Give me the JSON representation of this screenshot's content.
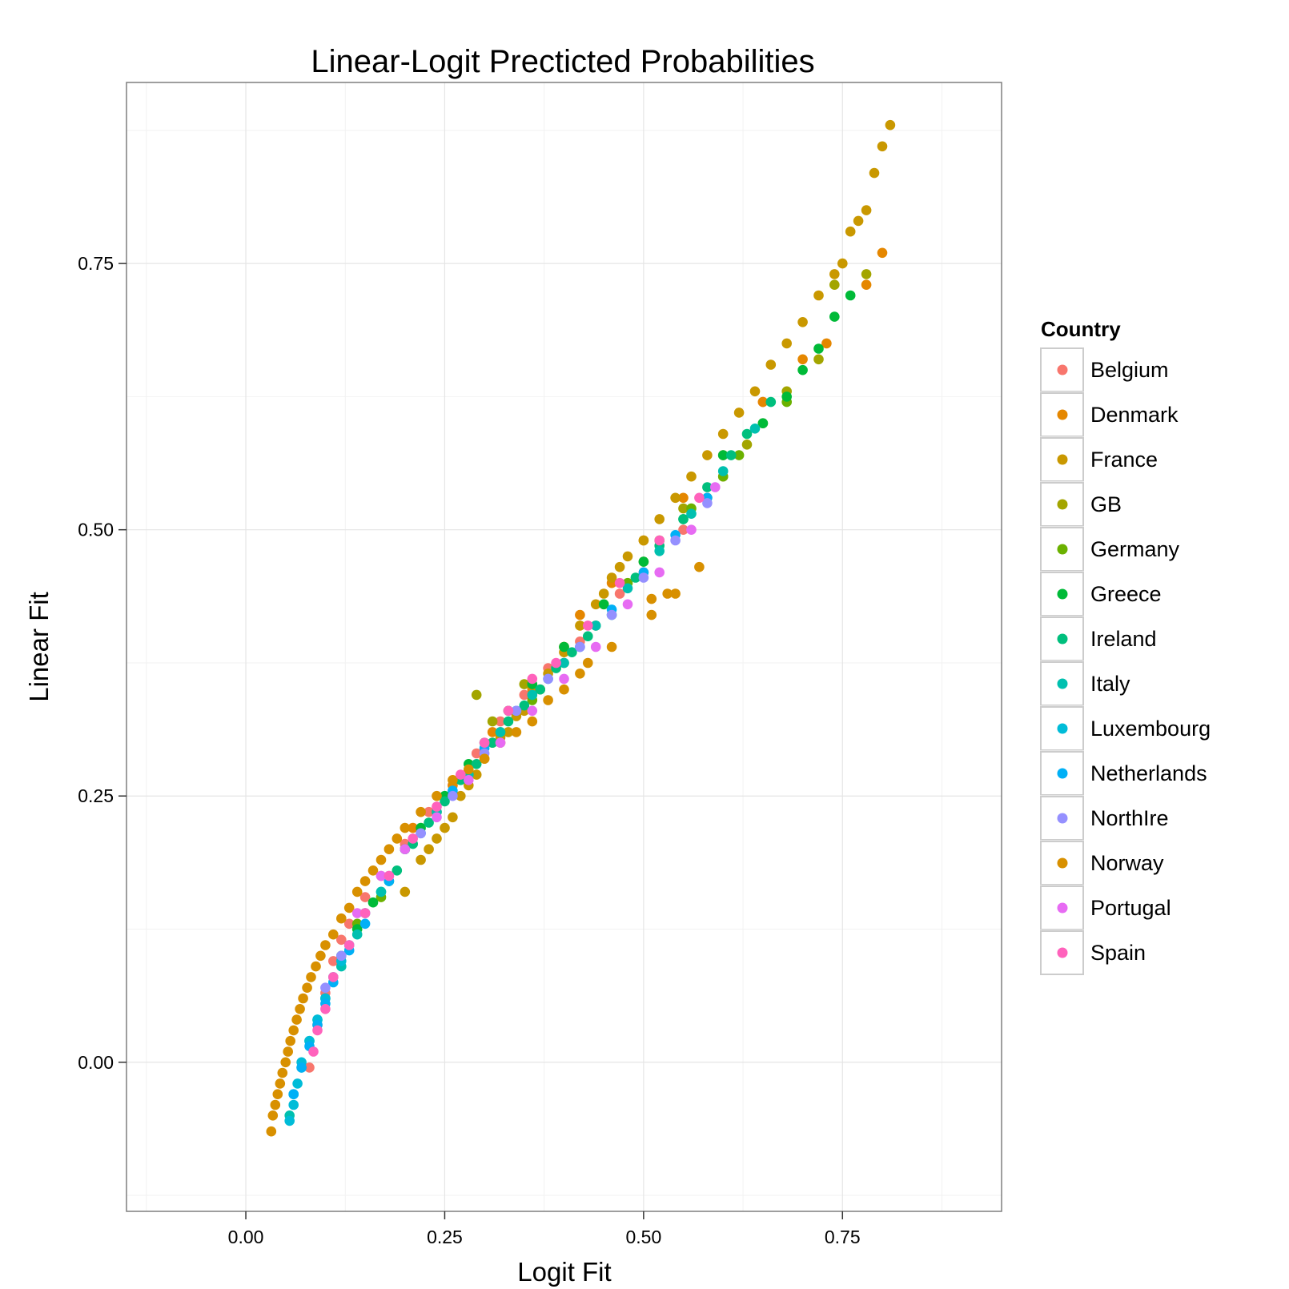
{
  "chart_data": {
    "type": "scatter",
    "title": "Linear-Logit Precticted Probabilities",
    "xlabel": "Logit Fit",
    "ylabel": "Linear Fit",
    "xlim": [
      -0.15,
      0.95
    ],
    "ylim": [
      -0.14,
      0.92
    ],
    "x_ticks": [
      0.0,
      0.25,
      0.5,
      0.75
    ],
    "x_tick_labels": [
      "0.00",
      "0.25",
      "0.50",
      "0.75"
    ],
    "y_ticks": [
      0.0,
      0.25,
      0.5,
      0.75
    ],
    "y_tick_labels": [
      "0.00",
      "0.25",
      "0.50",
      "0.75"
    ],
    "grid": true,
    "legend": {
      "title": "Country",
      "placement": "right"
    },
    "series": [
      {
        "name": "Belgium",
        "color": "#F8766D",
        "points": [
          [
            0.08,
            -0.005
          ],
          [
            0.09,
            0.035
          ],
          [
            0.1,
            0.065
          ],
          [
            0.11,
            0.095
          ],
          [
            0.12,
            0.115
          ],
          [
            0.13,
            0.13
          ],
          [
            0.15,
            0.155
          ],
          [
            0.17,
            0.175
          ],
          [
            0.2,
            0.205
          ],
          [
            0.23,
            0.235
          ],
          [
            0.26,
            0.26
          ],
          [
            0.29,
            0.29
          ],
          [
            0.32,
            0.32
          ],
          [
            0.35,
            0.345
          ],
          [
            0.38,
            0.37
          ],
          [
            0.42,
            0.395
          ],
          [
            0.47,
            0.44
          ],
          [
            0.5,
            0.46
          ],
          [
            0.55,
            0.5
          ],
          [
            0.6,
            0.55
          ],
          [
            0.65,
            0.62
          ]
        ]
      },
      {
        "name": "Denmark",
        "color": "#E58700",
        "points": [
          [
            0.21,
            0.22
          ],
          [
            0.26,
            0.26
          ],
          [
            0.31,
            0.31
          ],
          [
            0.36,
            0.35
          ],
          [
            0.4,
            0.39
          ],
          [
            0.42,
            0.42
          ],
          [
            0.46,
            0.45
          ],
          [
            0.5,
            0.49
          ],
          [
            0.55,
            0.53
          ],
          [
            0.6,
            0.57
          ],
          [
            0.65,
            0.62
          ],
          [
            0.7,
            0.66
          ],
          [
            0.73,
            0.675
          ],
          [
            0.78,
            0.73
          ],
          [
            0.8,
            0.76
          ]
        ]
      },
      {
        "name": "France",
        "color": "#C99800",
        "points": [
          [
            0.2,
            0.16
          ],
          [
            0.22,
            0.19
          ],
          [
            0.23,
            0.2
          ],
          [
            0.24,
            0.21
          ],
          [
            0.25,
            0.22
          ],
          [
            0.26,
            0.23
          ],
          [
            0.27,
            0.25
          ],
          [
            0.28,
            0.26
          ],
          [
            0.29,
            0.27
          ],
          [
            0.3,
            0.285
          ],
          [
            0.31,
            0.3
          ],
          [
            0.32,
            0.305
          ],
          [
            0.33,
            0.31
          ],
          [
            0.34,
            0.325
          ],
          [
            0.35,
            0.33
          ],
          [
            0.36,
            0.345
          ],
          [
            0.37,
            0.35
          ],
          [
            0.38,
            0.365
          ],
          [
            0.4,
            0.385
          ],
          [
            0.42,
            0.41
          ],
          [
            0.44,
            0.43
          ],
          [
            0.45,
            0.44
          ],
          [
            0.46,
            0.455
          ],
          [
            0.47,
            0.465
          ],
          [
            0.48,
            0.475
          ],
          [
            0.5,
            0.49
          ],
          [
            0.52,
            0.51
          ],
          [
            0.54,
            0.53
          ],
          [
            0.56,
            0.55
          ],
          [
            0.58,
            0.57
          ],
          [
            0.6,
            0.59
          ],
          [
            0.62,
            0.61
          ],
          [
            0.64,
            0.63
          ],
          [
            0.66,
            0.655
          ],
          [
            0.68,
            0.675
          ],
          [
            0.7,
            0.695
          ],
          [
            0.72,
            0.72
          ],
          [
            0.74,
            0.74
          ],
          [
            0.75,
            0.75
          ],
          [
            0.76,
            0.78
          ],
          [
            0.77,
            0.79
          ],
          [
            0.78,
            0.8
          ],
          [
            0.79,
            0.835
          ],
          [
            0.8,
            0.86
          ],
          [
            0.81,
            0.88
          ]
        ]
      },
      {
        "name": "GB",
        "color": "#A3A500",
        "points": [
          [
            0.29,
            0.345
          ],
          [
            0.31,
            0.32
          ],
          [
            0.35,
            0.355
          ],
          [
            0.4,
            0.39
          ],
          [
            0.45,
            0.43
          ],
          [
            0.5,
            0.47
          ],
          [
            0.55,
            0.52
          ],
          [
            0.58,
            0.53
          ],
          [
            0.63,
            0.58
          ],
          [
            0.68,
            0.63
          ],
          [
            0.72,
            0.66
          ],
          [
            0.74,
            0.73
          ],
          [
            0.78,
            0.74
          ]
        ]
      },
      {
        "name": "Germany",
        "color": "#6BB100",
        "points": [
          [
            0.14,
            0.13
          ],
          [
            0.17,
            0.155
          ],
          [
            0.2,
            0.2
          ],
          [
            0.24,
            0.235
          ],
          [
            0.28,
            0.27
          ],
          [
            0.32,
            0.31
          ],
          [
            0.36,
            0.34
          ],
          [
            0.4,
            0.375
          ],
          [
            0.44,
            0.41
          ],
          [
            0.48,
            0.45
          ],
          [
            0.52,
            0.49
          ],
          [
            0.56,
            0.52
          ],
          [
            0.6,
            0.55
          ],
          [
            0.62,
            0.57
          ],
          [
            0.65,
            0.6
          ],
          [
            0.68,
            0.62
          ]
        ]
      },
      {
        "name": "Greece",
        "color": "#00BA38",
        "points": [
          [
            0.12,
            0.1
          ],
          [
            0.14,
            0.125
          ],
          [
            0.16,
            0.15
          ],
          [
            0.18,
            0.17
          ],
          [
            0.2,
            0.2
          ],
          [
            0.22,
            0.22
          ],
          [
            0.25,
            0.25
          ],
          [
            0.28,
            0.28
          ],
          [
            0.3,
            0.3
          ],
          [
            0.33,
            0.33
          ],
          [
            0.36,
            0.355
          ],
          [
            0.4,
            0.39
          ],
          [
            0.45,
            0.43
          ],
          [
            0.5,
            0.47
          ],
          [
            0.55,
            0.51
          ],
          [
            0.6,
            0.57
          ],
          [
            0.65,
            0.6
          ],
          [
            0.68,
            0.625
          ],
          [
            0.7,
            0.65
          ],
          [
            0.72,
            0.67
          ],
          [
            0.74,
            0.7
          ],
          [
            0.76,
            0.72
          ]
        ]
      },
      {
        "name": "Ireland",
        "color": "#00BF7D",
        "points": [
          [
            0.15,
            0.14
          ],
          [
            0.17,
            0.16
          ],
          [
            0.19,
            0.18
          ],
          [
            0.21,
            0.205
          ],
          [
            0.23,
            0.225
          ],
          [
            0.25,
            0.245
          ],
          [
            0.27,
            0.265
          ],
          [
            0.29,
            0.28
          ],
          [
            0.31,
            0.3
          ],
          [
            0.33,
            0.32
          ],
          [
            0.35,
            0.335
          ],
          [
            0.37,
            0.35
          ],
          [
            0.39,
            0.37
          ],
          [
            0.41,
            0.385
          ],
          [
            0.43,
            0.4
          ],
          [
            0.46,
            0.42
          ],
          [
            0.49,
            0.455
          ],
          [
            0.52,
            0.485
          ],
          [
            0.55,
            0.51
          ],
          [
            0.58,
            0.54
          ],
          [
            0.61,
            0.57
          ],
          [
            0.63,
            0.59
          ],
          [
            0.66,
            0.62
          ]
        ]
      },
      {
        "name": "Italy",
        "color": "#00C0AF",
        "points": [
          [
            0.055,
            -0.05
          ],
          [
            0.06,
            -0.03
          ],
          [
            0.07,
            -0.005
          ],
          [
            0.08,
            0.02
          ],
          [
            0.09,
            0.04
          ],
          [
            0.1,
            0.06
          ],
          [
            0.12,
            0.09
          ],
          [
            0.14,
            0.12
          ],
          [
            0.17,
            0.16
          ],
          [
            0.2,
            0.2
          ],
          [
            0.24,
            0.235
          ],
          [
            0.28,
            0.27
          ],
          [
            0.32,
            0.31
          ],
          [
            0.36,
            0.345
          ],
          [
            0.4,
            0.375
          ],
          [
            0.44,
            0.41
          ],
          [
            0.48,
            0.445
          ],
          [
            0.52,
            0.48
          ],
          [
            0.56,
            0.515
          ],
          [
            0.6,
            0.555
          ],
          [
            0.64,
            0.595
          ]
        ]
      },
      {
        "name": "Luxembourg",
        "color": "#00BCD8",
        "points": [
          [
            0.055,
            -0.055
          ],
          [
            0.06,
            -0.04
          ],
          [
            0.065,
            -0.02
          ],
          [
            0.07,
            0.0
          ],
          [
            0.08,
            0.02
          ],
          [
            0.09,
            0.04
          ],
          [
            0.1,
            0.06
          ],
          [
            0.11,
            0.08
          ],
          [
            0.12,
            0.095
          ],
          [
            0.13,
            0.11
          ]
        ]
      },
      {
        "name": "Netherlands",
        "color": "#00B0F6",
        "points": [
          [
            0.06,
            -0.03
          ],
          [
            0.07,
            -0.005
          ],
          [
            0.08,
            0.015
          ],
          [
            0.09,
            0.035
          ],
          [
            0.1,
            0.055
          ],
          [
            0.11,
            0.075
          ],
          [
            0.13,
            0.105
          ],
          [
            0.15,
            0.13
          ],
          [
            0.18,
            0.17
          ],
          [
            0.22,
            0.215
          ],
          [
            0.26,
            0.255
          ],
          [
            0.3,
            0.295
          ],
          [
            0.34,
            0.33
          ],
          [
            0.38,
            0.36
          ],
          [
            0.42,
            0.39
          ],
          [
            0.46,
            0.425
          ],
          [
            0.5,
            0.46
          ],
          [
            0.54,
            0.495
          ],
          [
            0.58,
            0.53
          ]
        ]
      },
      {
        "name": "NorthIre",
        "color": "#9590FF",
        "points": [
          [
            0.1,
            0.07
          ],
          [
            0.12,
            0.1
          ],
          [
            0.15,
            0.14
          ],
          [
            0.18,
            0.175
          ],
          [
            0.22,
            0.215
          ],
          [
            0.26,
            0.25
          ],
          [
            0.3,
            0.29
          ],
          [
            0.34,
            0.33
          ],
          [
            0.38,
            0.36
          ],
          [
            0.42,
            0.39
          ],
          [
            0.46,
            0.42
          ],
          [
            0.5,
            0.455
          ],
          [
            0.54,
            0.49
          ],
          [
            0.58,
            0.525
          ]
        ]
      },
      {
        "name": "Norway",
        "color": "#D89000",
        "points": [
          [
            0.032,
            -0.065
          ],
          [
            0.034,
            -0.05
          ],
          [
            0.037,
            -0.04
          ],
          [
            0.04,
            -0.03
          ],
          [
            0.043,
            -0.02
          ],
          [
            0.046,
            -0.01
          ],
          [
            0.05,
            0.0
          ],
          [
            0.053,
            0.01
          ],
          [
            0.056,
            0.02
          ],
          [
            0.06,
            0.03
          ],
          [
            0.064,
            0.04
          ],
          [
            0.068,
            0.05
          ],
          [
            0.072,
            0.06
          ],
          [
            0.077,
            0.07
          ],
          [
            0.082,
            0.08
          ],
          [
            0.088,
            0.09
          ],
          [
            0.094,
            0.1
          ],
          [
            0.1,
            0.11
          ],
          [
            0.11,
            0.12
          ],
          [
            0.12,
            0.135
          ],
          [
            0.13,
            0.145
          ],
          [
            0.14,
            0.16
          ],
          [
            0.15,
            0.17
          ],
          [
            0.16,
            0.18
          ],
          [
            0.17,
            0.19
          ],
          [
            0.18,
            0.2
          ],
          [
            0.19,
            0.21
          ],
          [
            0.2,
            0.22
          ],
          [
            0.22,
            0.235
          ],
          [
            0.24,
            0.25
          ],
          [
            0.26,
            0.265
          ],
          [
            0.28,
            0.275
          ],
          [
            0.3,
            0.285
          ],
          [
            0.32,
            0.3
          ],
          [
            0.34,
            0.31
          ],
          [
            0.36,
            0.32
          ],
          [
            0.38,
            0.34
          ],
          [
            0.4,
            0.35
          ],
          [
            0.42,
            0.365
          ],
          [
            0.43,
            0.375
          ],
          [
            0.46,
            0.39
          ],
          [
            0.51,
            0.42
          ],
          [
            0.51,
            0.435
          ],
          [
            0.53,
            0.44
          ],
          [
            0.54,
            0.44
          ],
          [
            0.57,
            0.465
          ]
        ]
      },
      {
        "name": "Portugal",
        "color": "#E76BF3",
        "points": [
          [
            0.14,
            0.14
          ],
          [
            0.17,
            0.175
          ],
          [
            0.2,
            0.2
          ],
          [
            0.24,
            0.23
          ],
          [
            0.28,
            0.265
          ],
          [
            0.32,
            0.3
          ],
          [
            0.36,
            0.33
          ],
          [
            0.4,
            0.36
          ],
          [
            0.44,
            0.39
          ],
          [
            0.48,
            0.43
          ],
          [
            0.52,
            0.46
          ],
          [
            0.56,
            0.5
          ],
          [
            0.59,
            0.54
          ]
        ]
      },
      {
        "name": "Spain",
        "color": "#FF62BC",
        "points": [
          [
            0.085,
            0.01
          ],
          [
            0.09,
            0.03
          ],
          [
            0.1,
            0.05
          ],
          [
            0.11,
            0.08
          ],
          [
            0.13,
            0.11
          ],
          [
            0.15,
            0.14
          ],
          [
            0.18,
            0.175
          ],
          [
            0.21,
            0.21
          ],
          [
            0.24,
            0.24
          ],
          [
            0.27,
            0.27
          ],
          [
            0.3,
            0.3
          ],
          [
            0.33,
            0.33
          ],
          [
            0.36,
            0.36
          ],
          [
            0.39,
            0.375
          ],
          [
            0.43,
            0.41
          ],
          [
            0.47,
            0.45
          ],
          [
            0.52,
            0.49
          ],
          [
            0.57,
            0.53
          ]
        ]
      }
    ]
  }
}
